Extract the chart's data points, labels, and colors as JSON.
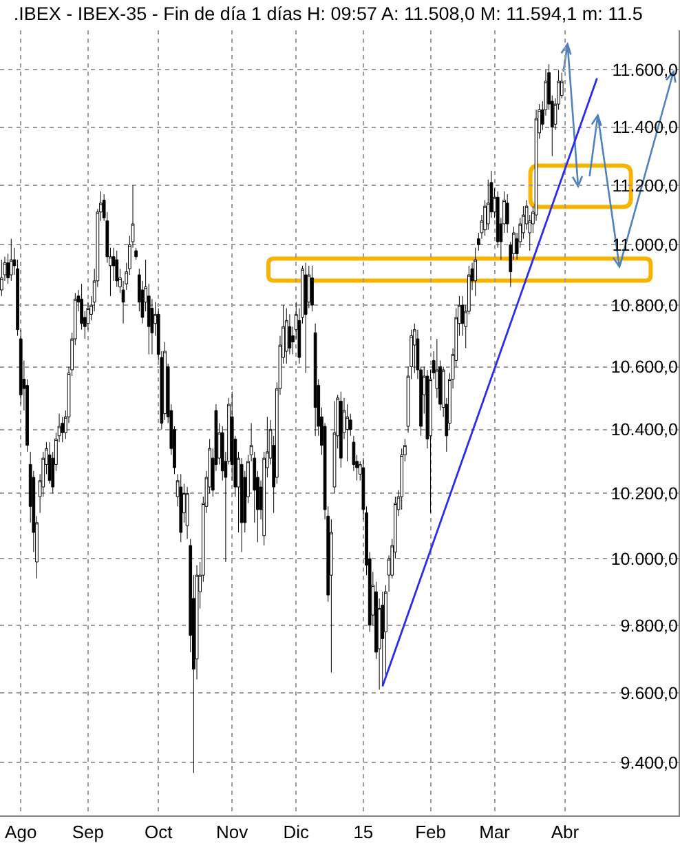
{
  "chart_data": {
    "type": "candlestick",
    "title": ".IBEX - IBEX-35 - Fin de día 1 días H: 09:57 A: 11.508,0 M: 11.594,1 m: 11.5",
    "color": "#000000",
    "log": true,
    "grid": true,
    "ylim": [
      9250,
      11740
    ],
    "yticks": [
      {
        "value": 9400,
        "label": "9.400,0"
      },
      {
        "value": 9600,
        "label": "9.600,0"
      },
      {
        "value": 9800,
        "label": "9.800,0"
      },
      {
        "value": 10000,
        "label": "10.000,0"
      },
      {
        "value": 10200,
        "label": "10.200,0"
      },
      {
        "value": 10400,
        "label": "10.400,0"
      },
      {
        "value": 10600,
        "label": "10.600,0"
      },
      {
        "value": 10800,
        "label": "10.800,0"
      },
      {
        "value": 11000,
        "label": "11.000,0"
      },
      {
        "value": 11200,
        "label": "11.200,0"
      },
      {
        "value": 11400,
        "label": "11.400,0"
      },
      {
        "value": 11600,
        "label": "11.600,0"
      }
    ],
    "categories": [
      null,
      null,
      null,
      null,
      null,
      null,
      "Ago",
      null,
      null,
      null,
      null,
      null,
      null,
      null,
      null,
      null,
      null,
      null,
      null,
      null,
      null,
      null,
      null,
      null,
      null,
      null,
      null,
      "Sep",
      null,
      null,
      null,
      null,
      null,
      null,
      null,
      null,
      null,
      null,
      null,
      null,
      null,
      null,
      null,
      null,
      null,
      null,
      null,
      null,
      null,
      "Oct",
      null,
      null,
      null,
      null,
      null,
      null,
      null,
      null,
      null,
      null,
      null,
      null,
      null,
      null,
      null,
      null,
      null,
      null,
      null,
      null,
      null,
      null,
      "Nov",
      null,
      null,
      null,
      null,
      null,
      null,
      null,
      null,
      null,
      null,
      null,
      null,
      null,
      null,
      null,
      null,
      null,
      null,
      null,
      "Dic",
      null,
      null,
      null,
      null,
      null,
      null,
      null,
      null,
      null,
      null,
      null,
      null,
      null,
      null,
      null,
      null,
      null,
      null,
      null,
      null,
      "15",
      null,
      null,
      null,
      null,
      null,
      null,
      null,
      null,
      null,
      null,
      null,
      null,
      null,
      null,
      null,
      null,
      null,
      null,
      null,
      null,
      "Feb",
      null,
      null,
      null,
      null,
      null,
      null,
      null,
      null,
      null,
      null,
      null,
      null,
      null,
      null,
      null,
      null,
      null,
      null,
      null,
      "Mar",
      null,
      null,
      null,
      null,
      null,
      null,
      null,
      null,
      null,
      null,
      null,
      null,
      null,
      null,
      null,
      null,
      null,
      null,
      null,
      null,
      null,
      "Abr",
      null,
      null,
      null,
      null,
      null,
      null,
      null,
      null,
      null,
      null,
      null,
      null,
      null,
      null,
      null,
      null,
      null,
      null,
      null,
      null,
      null,
      null,
      null,
      null,
      null,
      null,
      null,
      null,
      null,
      null,
      null,
      null,
      null,
      null,
      null
    ],
    "ohlc": [
      [
        10850,
        10950,
        10830,
        10890
      ],
      [
        10900,
        10960,
        10880,
        10940
      ],
      [
        10940,
        10970,
        10870,
        10890
      ],
      [
        10900,
        11020,
        10880,
        10950
      ],
      [
        10950,
        10990,
        10900,
        10930
      ],
      [
        10920,
        10950,
        10700,
        10720
      ],
      [
        10690,
        10720,
        10480,
        10510
      ],
      [
        10560,
        10620,
        10460,
        10530
      ],
      [
        10540,
        10560,
        10330,
        10350
      ],
      [
        10290,
        10330,
        10110,
        10160
      ],
      [
        10250,
        10270,
        10020,
        10080
      ],
      [
        9990,
        10130,
        9940,
        10110
      ],
      [
        10190,
        10260,
        10140,
        10240
      ],
      [
        10220,
        10330,
        10190,
        10310
      ],
      [
        10290,
        10360,
        10260,
        10340
      ],
      [
        10320,
        10360,
        10230,
        10240
      ],
      [
        10310,
        10330,
        10200,
        10220
      ],
      [
        10290,
        10390,
        10270,
        10370
      ],
      [
        10380,
        10450,
        10360,
        10410
      ],
      [
        10420,
        10440,
        10360,
        10390
      ],
      [
        10390,
        10460,
        10370,
        10440
      ],
      [
        10440,
        10600,
        10420,
        10580
      ],
      [
        10590,
        10710,
        10570,
        10690
      ],
      [
        10690,
        10840,
        10670,
        10820
      ],
      [
        10830,
        10850,
        10780,
        10810
      ],
      [
        10820,
        10870,
        10720,
        10740
      ],
      [
        10760,
        10780,
        10690,
        10730
      ],
      [
        10740,
        10810,
        10720,
        10790
      ],
      [
        10770,
        10830,
        10750,
        10800
      ],
      [
        10810,
        10920,
        10780,
        10880
      ],
      [
        10880,
        11120,
        10860,
        11110
      ],
      [
        11110,
        11180,
        11080,
        11140
      ],
      [
        11150,
        11170,
        11080,
        11090
      ],
      [
        11080,
        11110,
        10940,
        10960
      ],
      [
        10930,
        10990,
        10830,
        10960
      ],
      [
        10960,
        10990,
        10880,
        10930
      ],
      [
        10950,
        10980,
        10860,
        10880
      ],
      [
        10860,
        10920,
        10840,
        10890
      ],
      [
        10850,
        10880,
        10740,
        10810
      ],
      [
        10870,
        10940,
        10850,
        10910
      ],
      [
        10920,
        11030,
        10900,
        11000
      ],
      [
        11010,
        11200,
        10990,
        11070
      ],
      [
        10980,
        10990,
        10950,
        10960
      ],
      [
        10900,
        10920,
        10780,
        10810
      ],
      [
        10850,
        10880,
        10740,
        10760
      ],
      [
        10810,
        10950,
        10780,
        10860
      ],
      [
        10830,
        10870,
        10640,
        10730
      ],
      [
        10790,
        10820,
        10640,
        10710
      ],
      [
        10740,
        10810,
        10700,
        10770
      ],
      [
        10770,
        10790,
        10620,
        10640
      ],
      [
        10630,
        10650,
        10400,
        10420
      ],
      [
        10450,
        10680,
        10430,
        10650
      ],
      [
        10600,
        10610,
        10420,
        10440
      ],
      [
        10460,
        10480,
        10320,
        10340
      ],
      [
        10400,
        10410,
        10260,
        10280
      ],
      [
        10190,
        10260,
        10160,
        10240
      ],
      [
        10220,
        10260,
        10050,
        10080
      ],
      [
        10140,
        10230,
        10110,
        10200
      ],
      [
        10100,
        10220,
        10060,
        10200
      ],
      [
        10040,
        10060,
        9720,
        9770
      ],
      [
        9880,
        9950,
        9370,
        9670
      ],
      [
        9700,
        9980,
        9640,
        9950
      ],
      [
        9900,
        9990,
        9850,
        9950
      ],
      [
        9950,
        10190,
        9930,
        10170
      ],
      [
        10160,
        10270,
        10140,
        10250
      ],
      [
        10220,
        10370,
        10200,
        10340
      ],
      [
        10310,
        10340,
        10190,
        10210
      ],
      [
        10460,
        10480,
        10270,
        10290
      ],
      [
        10310,
        10420,
        10290,
        10390
      ],
      [
        10390,
        10410,
        10240,
        10270
      ],
      [
        10300,
        10330,
        9990,
        10250
      ],
      [
        10300,
        10500,
        10290,
        10480
      ],
      [
        10440,
        10520,
        10240,
        10290
      ],
      [
        10370,
        10380,
        10190,
        10220
      ],
      [
        10220,
        10330,
        10080,
        10310
      ],
      [
        10290,
        10310,
        10020,
        10110
      ],
      [
        10250,
        10270,
        10080,
        10110
      ],
      [
        10190,
        10320,
        10170,
        10300
      ],
      [
        10320,
        10420,
        10300,
        10350
      ],
      [
        10310,
        10330,
        10110,
        10210
      ],
      [
        10250,
        10270,
        10050,
        10150
      ],
      [
        10220,
        10240,
        10120,
        10150
      ],
      [
        10070,
        10330,
        10040,
        10310
      ],
      [
        10280,
        10440,
        10250,
        10330
      ],
      [
        10310,
        10430,
        10290,
        10400
      ],
      [
        10350,
        10380,
        10140,
        10220
      ],
      [
        10250,
        10550,
        10230,
        10530
      ],
      [
        10530,
        10700,
        10510,
        10670
      ],
      [
        10630,
        10800,
        10610,
        10730
      ],
      [
        10650,
        10790,
        10610,
        10750
      ],
      [
        10730,
        10770,
        10640,
        10660
      ],
      [
        10700,
        10730,
        10640,
        10680
      ],
      [
        10720,
        10810,
        10690,
        10770
      ],
      [
        10750,
        10790,
        10610,
        10630
      ],
      [
        10760,
        10930,
        10740,
        10920
      ],
      [
        10900,
        10940,
        10580,
        10770
      ],
      [
        10810,
        10930,
        10790,
        10900
      ],
      [
        10890,
        10930,
        10780,
        10800
      ],
      [
        10710,
        10740,
        10380,
        10470
      ],
      [
        10540,
        10560,
        10380,
        10410
      ],
      [
        10440,
        10470,
        10320,
        10350
      ],
      [
        10410,
        10420,
        10120,
        10150
      ],
      [
        10130,
        10160,
        9870,
        9890
      ],
      [
        9950,
        10120,
        9660,
        10080
      ],
      [
        10220,
        10490,
        10200,
        10390
      ],
      [
        10380,
        10510,
        10340,
        10500
      ],
      [
        10490,
        10520,
        10280,
        10310
      ],
      [
        10390,
        10500,
        10370,
        10460
      ],
      [
        10400,
        10480,
        10300,
        10440
      ],
      [
        10430,
        10450,
        10380,
        10400
      ],
      [
        10360,
        10380,
        10270,
        10290
      ],
      [
        10300,
        10320,
        10240,
        10280
      ],
      [
        10260,
        10300,
        10240,
        10290
      ],
      [
        10280,
        10310,
        10120,
        10150
      ],
      [
        10140,
        10160,
        9950,
        9980
      ],
      [
        10000,
        10020,
        9780,
        9800
      ],
      [
        9830,
        9960,
        9800,
        9920
      ],
      [
        9900,
        9930,
        9700,
        9720
      ],
      [
        9730,
        9880,
        9610,
        9850
      ],
      [
        9860,
        9900,
        9620,
        9760
      ],
      [
        9780,
        9920,
        9650,
        9900
      ],
      [
        9950,
        10010,
        9900,
        10000
      ],
      [
        9950,
        10060,
        9940,
        10040
      ],
      [
        10020,
        10190,
        10000,
        10170
      ],
      [
        10150,
        10210,
        10130,
        10190
      ],
      [
        10190,
        10340,
        10150,
        10320
      ],
      [
        10320,
        10370,
        10300,
        10350
      ],
      [
        10410,
        10600,
        10390,
        10570
      ],
      [
        10600,
        10720,
        10560,
        10700
      ],
      [
        10670,
        10740,
        10580,
        10720
      ],
      [
        10690,
        10720,
        10560,
        10590
      ],
      [
        10590,
        10600,
        10380,
        10410
      ],
      [
        10510,
        10600,
        10450,
        10570
      ],
      [
        10570,
        10590,
        10340,
        10370
      ],
      [
        10380,
        10590,
        10140,
        10560
      ],
      [
        10620,
        10650,
        10560,
        10580
      ],
      [
        10530,
        10690,
        10500,
        10590
      ],
      [
        10600,
        10620,
        10460,
        10480
      ],
      [
        10470,
        10600,
        10440,
        10590
      ],
      [
        10480,
        10500,
        10330,
        10380
      ],
      [
        10420,
        10580,
        10400,
        10560
      ],
      [
        10560,
        10660,
        10530,
        10640
      ],
      [
        10620,
        10790,
        10600,
        10760
      ],
      [
        10740,
        10830,
        10700,
        10800
      ],
      [
        10800,
        10830,
        10700,
        10740
      ],
      [
        10730,
        10800,
        10660,
        10780
      ],
      [
        10780,
        10930,
        10770,
        10900
      ],
      [
        10920,
        10940,
        10850,
        10880
      ],
      [
        10880,
        10990,
        10830,
        10950
      ],
      [
        11020,
        11040,
        10980,
        11000
      ],
      [
        11040,
        11100,
        11020,
        11080
      ],
      [
        11050,
        11150,
        11030,
        11130
      ],
      [
        11070,
        11220,
        11050,
        11140
      ],
      [
        11210,
        11250,
        11090,
        11110
      ],
      [
        11110,
        11190,
        11090,
        11160
      ],
      [
        11160,
        11180,
        10990,
        11010
      ],
      [
        11070,
        11090,
        10950,
        11010
      ],
      [
        11070,
        11180,
        11040,
        11150
      ],
      [
        11140,
        11170,
        11040,
        11070
      ],
      [
        11000,
        11010,
        10860,
        10910
      ],
      [
        10970,
        11060,
        10950,
        11040
      ],
      [
        11020,
        11040,
        10950,
        10970
      ],
      [
        11010,
        11090,
        10990,
        11070
      ],
      [
        11040,
        11130,
        11020,
        11100
      ],
      [
        11070,
        11150,
        11050,
        11130
      ],
      [
        11040,
        11100,
        10980,
        11080
      ],
      [
        11070,
        11130,
        11040,
        11110
      ],
      [
        11100,
        11460,
        11080,
        11430
      ],
      [
        11380,
        11480,
        11360,
        11460
      ],
      [
        11460,
        11490,
        11390,
        11410
      ],
      [
        11460,
        11600,
        11440,
        11560
      ],
      [
        11590,
        11620,
        11460,
        11480
      ],
      [
        11490,
        11510,
        11300,
        11400
      ],
      [
        11410,
        11500,
        11390,
        11480
      ],
      [
        11480,
        11600,
        11460,
        11560
      ],
      [
        11510,
        11590,
        11500,
        11560
      ],
      null,
      null,
      null,
      null,
      null,
      null,
      null,
      null,
      null,
      null,
      null,
      null,
      null,
      null,
      null,
      null,
      null,
      null,
      null,
      null,
      null,
      null,
      null,
      null,
      null,
      null,
      null,
      null,
      null,
      null,
      null,
      null,
      null,
      null,
      null,
      null
    ],
    "series": [
      {
        "type": "line",
        "color": "#2b2bef",
        "values": [
          null,
          null,
          null,
          null,
          null,
          null,
          null,
          null,
          null,
          null,
          null,
          null,
          null,
          null,
          null,
          null,
          null,
          null,
          null,
          null,
          null,
          null,
          null,
          null,
          null,
          null,
          null,
          null,
          null,
          null,
          null,
          null,
          null,
          null,
          null,
          null,
          null,
          null,
          null,
          null,
          null,
          null,
          null,
          null,
          null,
          null,
          null,
          null,
          null,
          null,
          null,
          null,
          null,
          null,
          null,
          null,
          null,
          null,
          null,
          null,
          null,
          null,
          null,
          null,
          null,
          null,
          null,
          null,
          null,
          null,
          null,
          null,
          null,
          null,
          null,
          null,
          null,
          null,
          null,
          null,
          null,
          null,
          null,
          null,
          null,
          null,
          null,
          null,
          null,
          null,
          null,
          null,
          null,
          null,
          null,
          null,
          null,
          null,
          null,
          null,
          null,
          null,
          null,
          null,
          null,
          null,
          null,
          null,
          null,
          null,
          null,
          null,
          null,
          null,
          null,
          null,
          null,
          null,
          null,
          9620,
          null,
          null,
          null,
          null,
          null,
          null,
          null,
          null,
          null,
          null,
          null,
          null,
          null,
          null,
          null,
          null,
          null,
          null,
          null,
          null,
          null,
          null,
          null,
          null,
          null,
          null,
          null,
          null,
          null,
          null,
          null,
          null,
          null,
          null,
          null,
          null,
          null,
          null,
          null,
          null,
          null,
          null,
          null,
          null,
          null,
          null,
          null,
          null,
          null,
          null,
          null,
          null,
          null,
          null,
          null,
          null,
          null,
          null,
          null,
          null,
          null,
          null,
          null,
          null,
          null,
          null,
          11570,
          null,
          null,
          null,
          null,
          null,
          null,
          null,
          null,
          null,
          null,
          null,
          null,
          null,
          null,
          null,
          null,
          null,
          null,
          null,
          null,
          null,
          null,
          null,
          null,
          null
        ]
      }
    ]
  }
}
